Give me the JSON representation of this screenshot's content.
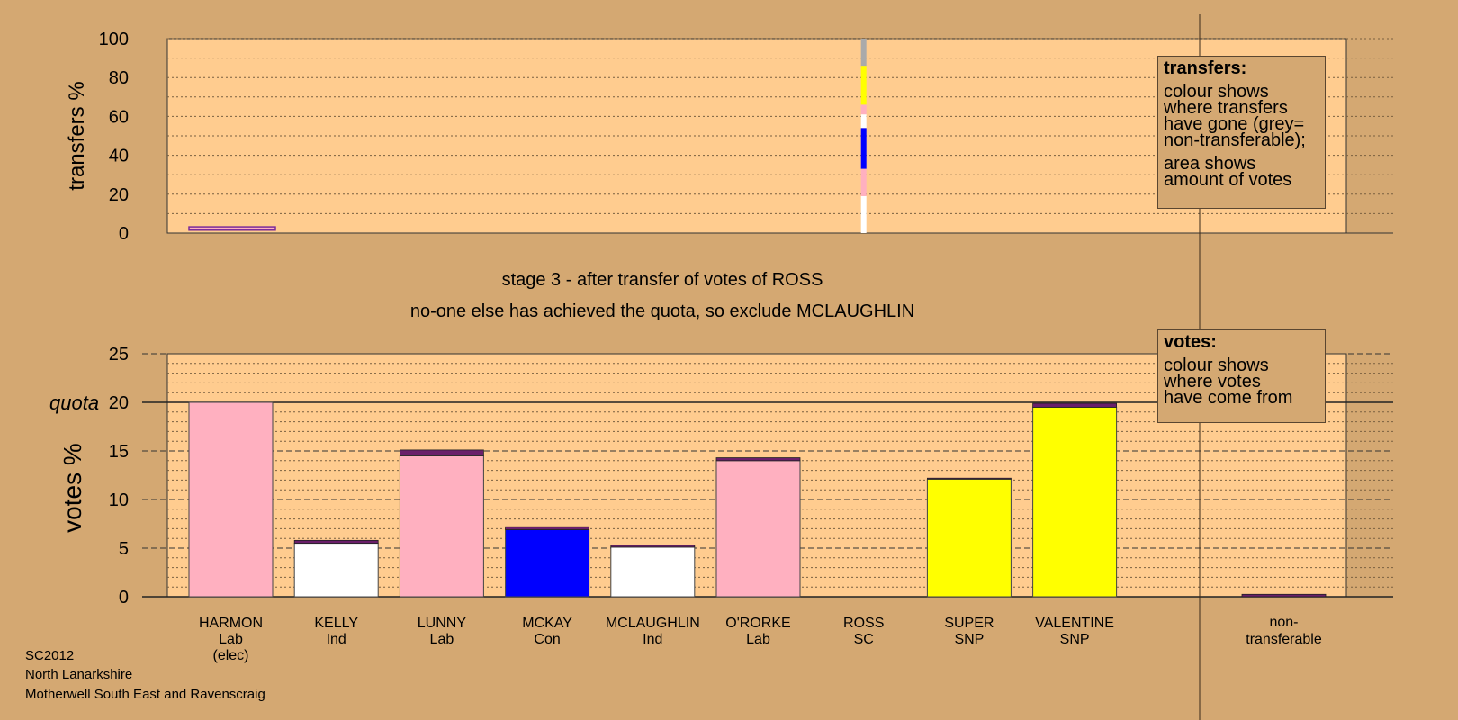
{
  "colors": {
    "background": "#D4A872",
    "plot_background": "#FFCC8F",
    "lab": "#FFB0C0",
    "ind": "#FFFFFF",
    "con": "#0000FF",
    "snp": "#FFFF00",
    "sc": "#FF9FB5",
    "nontransferable": "#AAAAAA",
    "transfer_cap": "#6A1F6A"
  },
  "stage_text": "stage 3 - after transfer of votes of ROSS",
  "exclude_text": "no-one else has achieved the quota, so exclude MCLAUGHLIN",
  "footer": {
    "line1": "SC2012",
    "line2": "North Lanarkshire",
    "line3": "Motherwell South East and Ravenscraig"
  },
  "transfers_legend": {
    "title": "transfers:",
    "lines1": [
      "colour shows",
      "where transfers",
      "have gone (grey=",
      "non-transferable);"
    ],
    "lines2": [
      "area shows",
      "amount of votes"
    ]
  },
  "votes_legend": {
    "title": "votes:",
    "lines": [
      "colour shows",
      "where votes",
      "have come from"
    ]
  },
  "chart_data": [
    {
      "type": "bar",
      "ylabel": "transfers %",
      "ylim": [
        0,
        100
      ],
      "yticks": [
        0,
        20,
        40,
        60,
        80,
        100
      ],
      "grid": true,
      "transfer_column": "ROSS",
      "transfer_segments": [
        {
          "to": "non-transferable",
          "color": "#AAAAAA",
          "from": 86,
          "to_value": 100
        },
        {
          "to": "SNP",
          "color": "#FFFF00",
          "from": 66,
          "to_value": 86
        },
        {
          "to": "Lab",
          "color": "#FFB0C0",
          "from": 61,
          "to_value": 66
        },
        {
          "to": "Ind",
          "color": "#FFFFFF",
          "from": 54,
          "to_value": 61
        },
        {
          "to": "Con",
          "color": "#0000FF",
          "from": 33,
          "to_value": 54
        },
        {
          "to": "Lab",
          "color": "#FFB0C0",
          "from": 19,
          "to_value": 33
        },
        {
          "to": "Ind",
          "color": "#FFFFFF",
          "from": 0,
          "to_value": 19
        }
      ],
      "small_marker": {
        "candidate": "HARMON",
        "from": 1.5,
        "to_value": 3.2
      }
    },
    {
      "type": "bar",
      "ylabel": "votes %",
      "ylim": [
        0,
        25
      ],
      "yticks": [
        0,
        5,
        10,
        15,
        20,
        25
      ],
      "quota": 20,
      "quota_label": "quota",
      "grid": true,
      "categories": [
        {
          "name": "HARMON",
          "party": "Lab",
          "extra": "(elec)"
        },
        {
          "name": "KELLY",
          "party": "Ind",
          "extra": ""
        },
        {
          "name": "LUNNY",
          "party": "Lab",
          "extra": ""
        },
        {
          "name": "MCKAY",
          "party": "Con",
          "extra": ""
        },
        {
          "name": "MCLAUGHLIN",
          "party": "Ind",
          "extra": ""
        },
        {
          "name": "O'RORKE",
          "party": "Lab",
          "extra": ""
        },
        {
          "name": "ROSS",
          "party": "SC",
          "extra": ""
        },
        {
          "name": "SUPER",
          "party": "SNP",
          "extra": ""
        },
        {
          "name": "VALENTINE",
          "party": "SNP",
          "extra": ""
        }
      ],
      "base_values": [
        20.0,
        5.5,
        14.5,
        6.9,
        5.1,
        14.0,
        0.0,
        12.1,
        19.5
      ],
      "transferred_values": [
        0.0,
        0.3,
        0.6,
        0.3,
        0.2,
        0.3,
        0.0,
        0.1,
        0.4
      ],
      "base_colors": [
        "#FFB0C0",
        "#FFFFFF",
        "#FFB0C0",
        "#0000FF",
        "#FFFFFF",
        "#FFB0C0",
        "#FF9FB5",
        "#FFFF00",
        "#FFFF00"
      ],
      "nontransferable": {
        "label1": "non-",
        "label2": "transferable",
        "value": 0.25
      }
    }
  ]
}
